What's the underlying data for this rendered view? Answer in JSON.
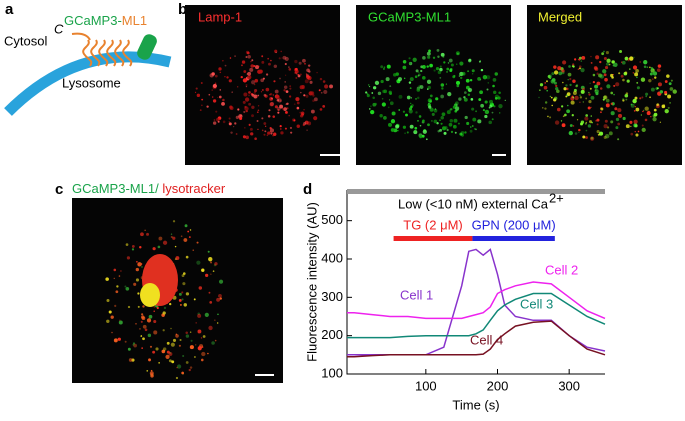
{
  "panel_labels": [
    "a",
    "b",
    "c",
    "d"
  ],
  "panel_a": {
    "cytosol": "Cytosol",
    "c_terminus": "C",
    "probe": "GCaMP3-",
    "probe_suffix": "ML1",
    "lysosome": "Lysosome"
  },
  "panel_b": {
    "titles": [
      "Lamp-1",
      "GCaMP3-ML1",
      "Merged"
    ]
  },
  "panel_c": {
    "title_green": "GCaMP3-ML1/",
    "title_red": " lysotracker"
  },
  "chart_data": {
    "type": "line",
    "annotation": "Low (<10 nM) external Ca",
    "annotation_sup": "2+",
    "treatments": [
      {
        "label": "TG (2 μM)",
        "start": 55,
        "end": 165,
        "color": "#ee2222"
      },
      {
        "label": "GPN (200 μM)",
        "start": 165,
        "end": 280,
        "color": "#2222dd"
      }
    ],
    "x": [
      -10,
      0,
      25,
      50,
      75,
      100,
      125,
      150,
      160,
      170,
      180,
      190,
      200,
      210,
      225,
      250,
      275,
      300,
      325,
      350
    ],
    "series": [
      {
        "name": "Cell 1",
        "color": "#8833cc",
        "values": [
          150,
          150,
          150,
          150,
          150,
          150,
          170,
          330,
          420,
          425,
          410,
          425,
          360,
          280,
          250,
          240,
          240,
          200,
          170,
          160
        ]
      },
      {
        "name": "Cell 2",
        "color": "#ee22ee",
        "values": [
          260,
          260,
          255,
          250,
          250,
          245,
          245,
          245,
          250,
          255,
          260,
          275,
          310,
          320,
          330,
          340,
          335,
          300,
          265,
          245
        ]
      },
      {
        "name": "Cell 3",
        "color": "#118877",
        "values": [
          195,
          195,
          195,
          195,
          198,
          200,
          200,
          200,
          200,
          205,
          215,
          240,
          265,
          280,
          295,
          310,
          310,
          280,
          250,
          230
        ]
      },
      {
        "name": "Cell 4",
        "color": "#771122",
        "values": [
          145,
          145,
          148,
          150,
          150,
          150,
          150,
          150,
          150,
          150,
          152,
          165,
          190,
          205,
          225,
          235,
          238,
          200,
          165,
          150
        ]
      }
    ],
    "xlim": [
      -10,
      350
    ],
    "ylim": [
      100,
      580
    ],
    "xticks": [
      100,
      200,
      300
    ],
    "yticks": [
      100,
      200,
      300,
      400,
      500
    ],
    "xlabel": "Time (s)",
    "ylabel": "Fluorescence intensity (AU)"
  }
}
